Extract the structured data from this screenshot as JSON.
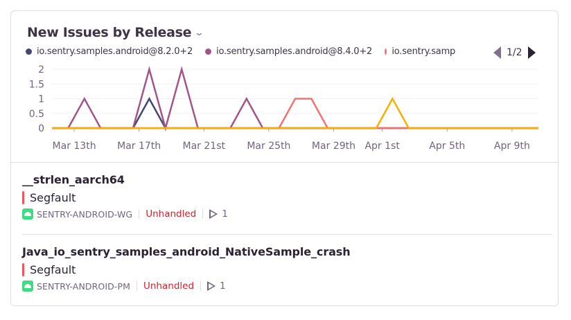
{
  "widget": {
    "title": "New Issues by Release",
    "legend": [
      {
        "label": "io.sentry.samples.android@8.2.0+2",
        "color": "#444674"
      },
      {
        "label": "io.sentry.samples.android@8.4.0+2",
        "color": "#a35488"
      },
      {
        "label": "io.sentry.samp",
        "color": "#f2726f"
      }
    ],
    "legend_page": "1/2"
  },
  "chart_data": {
    "type": "line",
    "x": [
      "Mar 11",
      "Mar 12",
      "Mar 13",
      "Mar 14",
      "Mar 15",
      "Mar 16",
      "Mar 17",
      "Mar 18",
      "Mar 19",
      "Mar 20",
      "Mar 21",
      "Mar 22",
      "Mar 23",
      "Mar 24",
      "Mar 25",
      "Mar 26",
      "Mar 27",
      "Mar 28",
      "Mar 29",
      "Mar 30",
      "Mar 31",
      "Apr 1",
      "Apr 2",
      "Apr 3",
      "Apr 4",
      "Apr 5",
      "Apr 6",
      "Apr 7",
      "Apr 8",
      "Apr 9",
      "Apr 10"
    ],
    "x_ticks": [
      "Mar 13th",
      "Mar 17th",
      "Mar 21st",
      "Mar 25th",
      "Mar 29th",
      "Apr 1st",
      "Apr 5th",
      "Apr 9th"
    ],
    "y_ticks": [
      "0",
      "0.5",
      "1",
      "1.5",
      "2"
    ],
    "ylim": [
      0,
      2
    ],
    "grid": true,
    "legend_position": "top",
    "series": [
      {
        "name": "io.sentry.samples.android@8.2.0+2",
        "color": "#444674",
        "values": [
          0,
          0,
          0,
          0,
          0,
          0,
          1,
          0,
          0,
          0,
          0,
          0,
          0,
          0,
          0,
          0,
          0,
          0,
          0,
          0,
          0,
          0,
          0,
          0,
          0,
          0,
          0,
          0,
          0,
          0,
          0
        ]
      },
      {
        "name": "io.sentry.samples.android@8.4.0+2",
        "color": "#a35488",
        "values": [
          0,
          0,
          1,
          0,
          0,
          0,
          2,
          0,
          2,
          0,
          0,
          0,
          1,
          0,
          0,
          0,
          0,
          0,
          0,
          0,
          0,
          0,
          0,
          0,
          0,
          0,
          0,
          0,
          0,
          0,
          0
        ]
      },
      {
        "color": "#f2726f",
        "values": [
          0,
          0,
          0,
          0,
          0,
          0,
          0,
          0,
          0,
          0,
          0,
          0,
          0,
          0,
          0,
          1,
          1,
          0,
          0,
          0,
          0,
          0,
          0,
          0,
          0,
          0,
          0,
          0,
          0,
          0,
          0
        ]
      },
      {
        "color": "#f5b000",
        "values": [
          0,
          0,
          0,
          0,
          0,
          0,
          0,
          0,
          0,
          0,
          0,
          0,
          0,
          0,
          0,
          0,
          0,
          0,
          0,
          0,
          0,
          1,
          0,
          0,
          0,
          0,
          0,
          0,
          0,
          0,
          0
        ]
      }
    ]
  },
  "issues": [
    {
      "name": "__strlen_aarch64",
      "message": "Segfault",
      "short_id": "SENTRY-ANDROID-WG",
      "status": "Unhandled",
      "count": "1",
      "platform_icon": "android-icon"
    },
    {
      "name": "Java_io_sentry_samples_android_NativeSample_crash",
      "message": "Segfault",
      "short_id": "SENTRY-ANDROID-PM",
      "status": "Unhandled",
      "count": "1",
      "platform_icon": "android-icon"
    }
  ]
}
